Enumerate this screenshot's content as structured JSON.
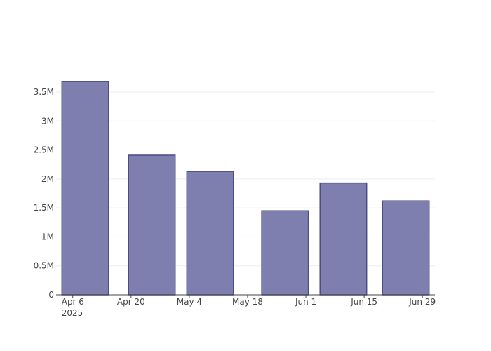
{
  "chart_data": {
    "type": "bar",
    "x": [
      "2025-04-09",
      "2025-04-25",
      "2025-05-09",
      "2025-05-27",
      "2025-06-10",
      "2025-06-25"
    ],
    "values": [
      3680000,
      2410000,
      2130000,
      1450000,
      1930000,
      1620000
    ],
    "color": "#7f7faf",
    "edge_color": "#4b4b86",
    "xlim": [
      "2025-04-02",
      "2025-07-02"
    ],
    "xticks": [
      {
        "value": "2025-04-06",
        "label": "Apr 6\n2025"
      },
      {
        "value": "2025-04-20",
        "label": "Apr 20"
      },
      {
        "value": "2025-05-04",
        "label": "May 4"
      },
      {
        "value": "2025-05-18",
        "label": "May 18"
      },
      {
        "value": "2025-06-01",
        "label": "Jun 1"
      },
      {
        "value": "2025-06-15",
        "label": "Jun 15"
      },
      {
        "value": "2025-06-29",
        "label": "Jun 29"
      }
    ],
    "bar_width_days": 11.2,
    "ylim": [
      0,
      3875000
    ],
    "yticks": [
      0,
      {
        "value": 500000,
        "label": "0.5M"
      },
      {
        "value": 1000000,
        "label": "1M"
      },
      {
        "value": 1500000,
        "label": "1.5M"
      },
      {
        "value": 2000000,
        "label": "2M"
      },
      {
        "value": 2500000,
        "label": "2.5M"
      },
      {
        "value": 3000000,
        "label": "3M"
      },
      {
        "value": 3500000,
        "label": "3.5M"
      }
    ],
    "grid": true
  }
}
